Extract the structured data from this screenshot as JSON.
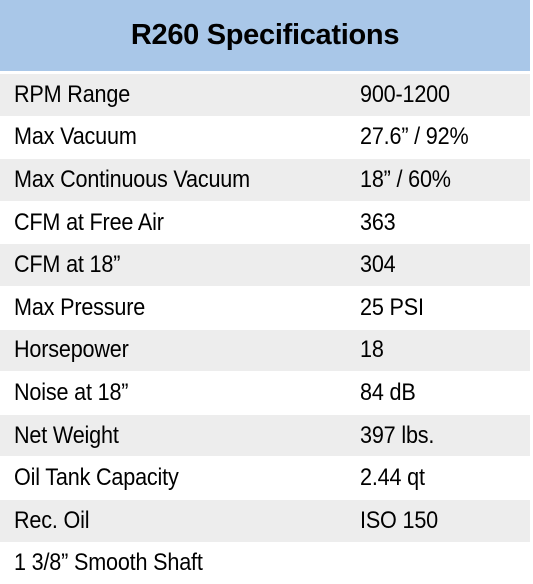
{
  "title": "R260 Specifications",
  "rows": [
    {
      "label": "RPM Range",
      "value": "900-1200"
    },
    {
      "label": "Max Vacuum",
      "value": "27.6” / 92%"
    },
    {
      "label": "Max Continuous Vacuum",
      "value": "18” / 60%"
    },
    {
      "label": "CFM at Free Air",
      "value": "363"
    },
    {
      "label": "CFM at 18”",
      "value": "304"
    },
    {
      "label": "Max Pressure",
      "value": "25 PSI"
    },
    {
      "label": "Horsepower",
      "value": "18"
    },
    {
      "label": "Noise at 18”",
      "value": "84 dB"
    },
    {
      "label": "Net Weight",
      "value": "397 lbs."
    },
    {
      "label": "Oil Tank Capacity",
      "value": "2.44 qt"
    },
    {
      "label": "Rec. Oil",
      "value": "ISO 150"
    },
    {
      "label": "1 3/8” Smooth Shaft",
      "value": ""
    }
  ],
  "colors": {
    "header_background": "#a9c7e8",
    "row_shaded": "#ededed",
    "row_plain": "#ffffff"
  }
}
